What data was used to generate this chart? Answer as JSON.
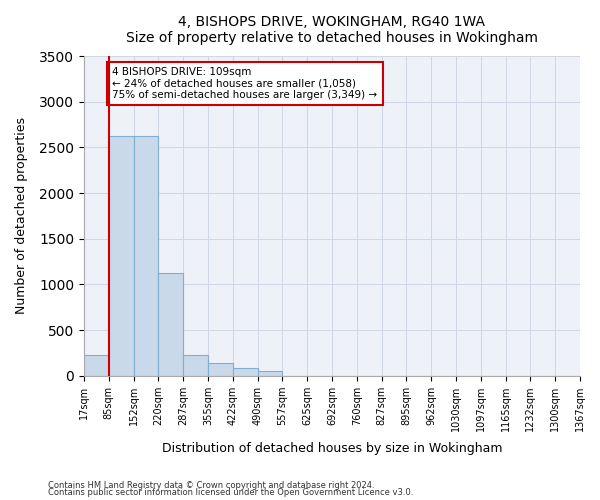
{
  "title": "4, BISHOPS DRIVE, WOKINGHAM, RG40 1WA",
  "subtitle": "Size of property relative to detached houses in Wokingham",
  "xlabel": "Distribution of detached houses by size in Wokingham",
  "ylabel": "Number of detached properties",
  "bin_labels": [
    "17sqm",
    "85sqm",
    "152sqm",
    "220sqm",
    "287sqm",
    "355sqm",
    "422sqm",
    "490sqm",
    "557sqm",
    "625sqm",
    "692sqm",
    "760sqm",
    "827sqm",
    "895sqm",
    "962sqm",
    "1030sqm",
    "1097sqm",
    "1165sqm",
    "1232sqm",
    "1300sqm",
    "1367sqm"
  ],
  "bar_heights": [
    230,
    2620,
    2620,
    1120,
    230,
    140,
    80,
    50,
    0,
    0,
    0,
    0,
    0,
    0,
    0,
    0,
    0,
    0,
    0,
    0
  ],
  "bar_color": "#c9d9ea",
  "bar_edge_color": "#7fafd0",
  "grid_color": "#d0d8e8",
  "background_color": "#eef2f8",
  "red_line_x": 1,
  "annotation_text": "4 BISHOPS DRIVE: 109sqm\n← 24% of detached houses are smaller (1,058)\n75% of semi-detached houses are larger (3,349) →",
  "annotation_box_color": "#ffffff",
  "annotation_box_edge": "#cc0000",
  "footnote1": "Contains HM Land Registry data © Crown copyright and database right 2024.",
  "footnote2": "Contains public sector information licensed under the Open Government Licence v3.0.",
  "ylim": [
    0,
    3500
  ],
  "yticks": [
    0,
    500,
    1000,
    1500,
    2000,
    2500,
    3000,
    3500
  ]
}
